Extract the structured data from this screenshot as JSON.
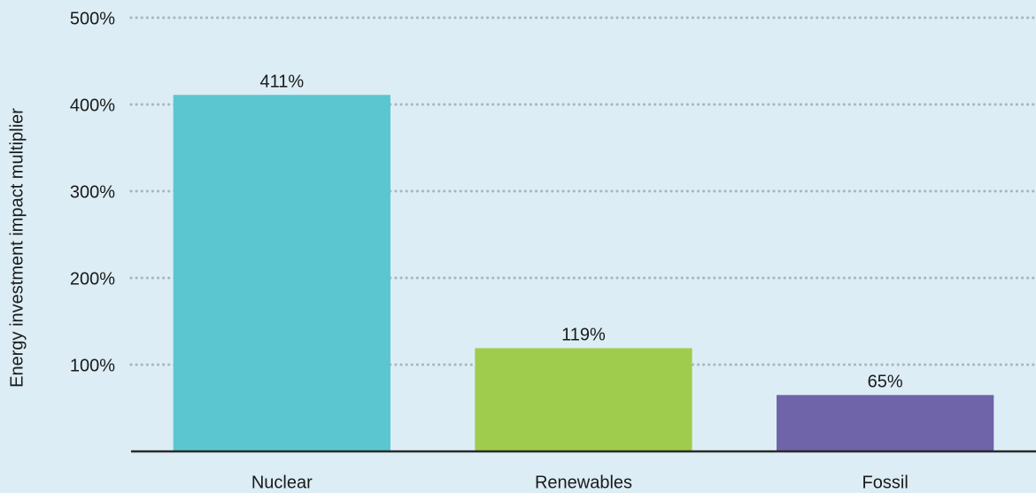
{
  "chart_data": {
    "type": "bar",
    "y_label": "Energy investment impact multiplier",
    "categories": [
      "Nuclear",
      "Renewables",
      "Fossil"
    ],
    "values": [
      411,
      119,
      65
    ],
    "value_labels": [
      "411%",
      "119%",
      "65%"
    ],
    "colors": [
      "#5bc6d0",
      "#a0cc4e",
      "#6f63a9"
    ],
    "ylim": [
      0,
      500
    ],
    "yticks": [
      {
        "value": 100,
        "label": "100%"
      },
      {
        "value": 200,
        "label": "200%"
      },
      {
        "value": 300,
        "label": "300%"
      },
      {
        "value": 400,
        "label": "400%"
      },
      {
        "value": 500,
        "label": "500%"
      }
    ],
    "grid": true
  }
}
